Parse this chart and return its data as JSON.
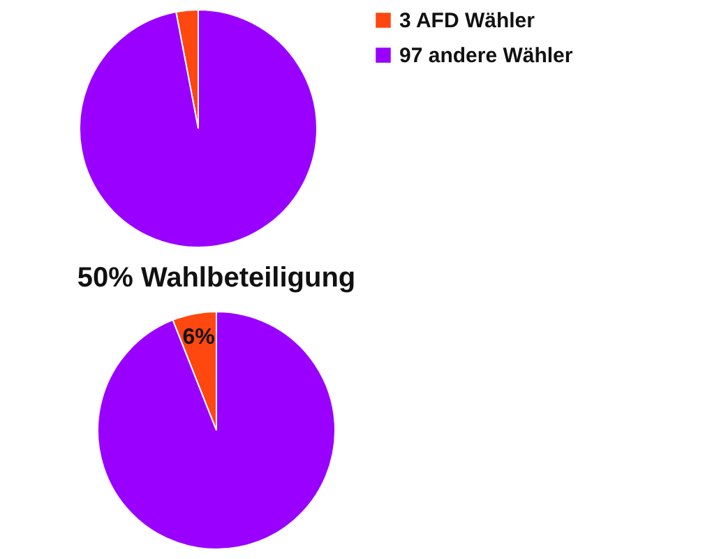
{
  "chart_data": [
    {
      "type": "pie",
      "categories": [
        "3 AFD Wähler",
        "97 andere Wähler"
      ],
      "values": [
        3,
        97
      ],
      "colors": [
        "#ff4710",
        "#9900ff"
      ],
      "legend": "right"
    },
    {
      "type": "pie",
      "title": "50% Wahlbeteiligung",
      "categories": [
        null,
        null
      ],
      "values": [
        6,
        94
      ],
      "colors": [
        "#ff4710",
        "#9900ff"
      ],
      "value_labels": [
        "6%",
        null
      ],
      "legend": false
    }
  ]
}
